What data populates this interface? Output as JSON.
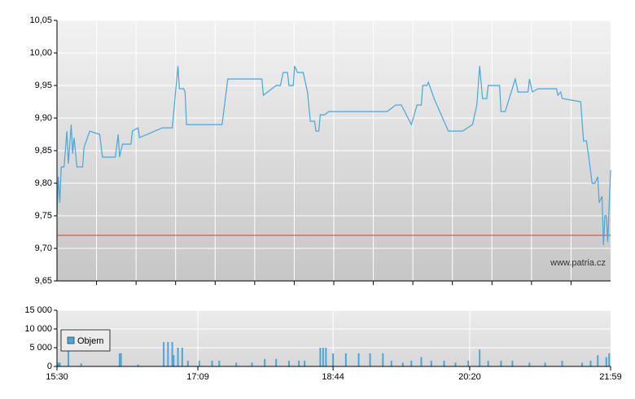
{
  "chart_data": [
    {
      "type": "line",
      "xlim": [
        "15:30",
        "21:59"
      ],
      "ylim": [
        9.65,
        10.05
      ],
      "yticks": [
        {
          "value": 9.65,
          "label": "9,65"
        },
        {
          "value": 9.7,
          "label": "9,70"
        },
        {
          "value": 9.75,
          "label": "9,75"
        },
        {
          "value": 9.8,
          "label": "9,80"
        },
        {
          "value": 9.85,
          "label": "9,85"
        },
        {
          "value": 9.9,
          "label": "9,90"
        },
        {
          "value": 9.95,
          "label": "9,95"
        },
        {
          "value": 10.0,
          "label": "10,00"
        },
        {
          "value": 10.05,
          "label": "10,05"
        }
      ],
      "grid": true,
      "color": "#4aa6d6",
      "reference_line": {
        "value": 9.72,
        "color": "#e03a2a"
      },
      "watermark": "www.patria.cz",
      "x": [
        "15:30",
        "15:31",
        "15:32",
        "15:33",
        "15:35",
        "15:37",
        "15:38",
        "15:40",
        "15:41",
        "15:42",
        "15:44",
        "15:48",
        "15:49",
        "15:53",
        "16:00",
        "16:02",
        "16:11",
        "16:13",
        "16:14",
        "16:16",
        "16:22",
        "16:23",
        "16:27",
        "16:28",
        "16:44",
        "16:51",
        "16:55",
        "16:56",
        "16:59",
        "17:00",
        "17:01",
        "17:26",
        "17:30",
        "17:54",
        "17:55",
        "18:04",
        "18:07",
        "18:09",
        "18:12",
        "18:13",
        "18:16",
        "18:17",
        "18:19",
        "18:23",
        "18:26",
        "18:28",
        "18:31",
        "18:32",
        "18:34",
        "18:35",
        "18:38",
        "18:41",
        "19:22",
        "19:28",
        "19:32",
        "19:39",
        "19:43",
        "19:46",
        "19:47",
        "19:50",
        "19:51",
        "19:55",
        "19:59",
        "20:05",
        "20:15",
        "20:22",
        "20:25",
        "20:27",
        "20:29",
        "20:32",
        "20:33",
        "20:41",
        "20:42",
        "20:45",
        "20:52",
        "20:54",
        "21:01",
        "21:02",
        "21:04",
        "21:08",
        "21:21",
        "21:22",
        "21:24",
        "21:25",
        "21:38",
        "21:40",
        "21:42",
        "21:44",
        "21:46",
        "21:48",
        "21:50",
        "21:51",
        "21:53",
        "21:54",
        "21:55",
        "21:56",
        "21:57",
        "21:59"
      ],
      "values": [
        9.75,
        9.81,
        9.77,
        9.825,
        9.825,
        9.88,
        9.83,
        9.89,
        9.845,
        9.87,
        9.825,
        9.825,
        9.855,
        9.88,
        9.875,
        9.84,
        9.84,
        9.875,
        9.84,
        9.86,
        9.86,
        9.88,
        9.885,
        9.87,
        9.885,
        9.885,
        9.98,
        9.945,
        9.945,
        9.94,
        9.89,
        9.89,
        9.96,
        9.96,
        9.935,
        9.95,
        9.95,
        9.97,
        9.97,
        9.95,
        9.95,
        9.98,
        9.97,
        9.97,
        9.94,
        9.895,
        9.895,
        9.88,
        9.88,
        9.905,
        9.905,
        9.91,
        9.91,
        9.92,
        9.92,
        9.89,
        9.92,
        9.92,
        9.95,
        9.95,
        9.955,
        9.93,
        9.91,
        9.88,
        9.88,
        9.89,
        9.92,
        9.98,
        9.93,
        9.93,
        9.95,
        9.95,
        9.91,
        9.91,
        9.96,
        9.94,
        9.94,
        9.96,
        9.94,
        9.945,
        9.945,
        9.935,
        9.94,
        9.93,
        9.925,
        9.865,
        9.865,
        9.835,
        9.8,
        9.8,
        9.81,
        9.77,
        9.78,
        9.705,
        9.75,
        9.75,
        9.71,
        9.82
      ]
    },
    {
      "type": "bar",
      "xlim": [
        "15:30",
        "21:59"
      ],
      "xticks": [
        "15:30",
        "17:09",
        "18:44",
        "20:20",
        "21:59"
      ],
      "ylim": [
        0,
        15000
      ],
      "yticks": [
        0,
        {
          "value": 5000,
          "label": "5 000"
        },
        {
          "value": 10000,
          "label": "10 000"
        },
        {
          "value": 15000,
          "label": "15 000"
        }
      ],
      "grid": true,
      "legend": "left",
      "series": [
        {
          "name": "Objem",
          "color": "#4aa6d6",
          "x": [
            "15:31",
            "15:32",
            "15:38",
            "15:47",
            "16:14",
            "16:15",
            "16:27",
            "16:45",
            "16:48",
            "16:51",
            "16:52",
            "16:55",
            "16:58",
            "17:02",
            "17:10",
            "17:19",
            "17:24",
            "17:36",
            "17:47",
            "17:56",
            "18:04",
            "18:13",
            "18:20",
            "18:24",
            "18:35",
            "18:37",
            "18:39",
            "18:44",
            "18:53",
            "19:02",
            "19:10",
            "19:19",
            "19:25",
            "19:33",
            "19:39",
            "19:46",
            "19:53",
            "20:02",
            "20:10",
            "20:19",
            "20:27",
            "20:33",
            "20:42",
            "20:50",
            "21:02",
            "21:13",
            "21:25",
            "21:39",
            "21:45",
            "21:50",
            "21:56",
            "21:58"
          ],
          "values": [
            1000,
            1000,
            8000,
            800,
            3500,
            3500,
            500,
            6500,
            6500,
            6500,
            3000,
            5000,
            5000,
            1500,
            1500,
            1500,
            1500,
            1000,
            1000,
            2000,
            2000,
            1500,
            1500,
            1500,
            5000,
            5000,
            5000,
            3500,
            3500,
            3500,
            3500,
            3500,
            1500,
            1000,
            1500,
            2500,
            1500,
            1500,
            1000,
            1500,
            4500,
            1500,
            1500,
            1500,
            1000,
            1000,
            1500,
            1000,
            1500,
            3000,
            2500,
            3500
          ]
        }
      ]
    }
  ]
}
